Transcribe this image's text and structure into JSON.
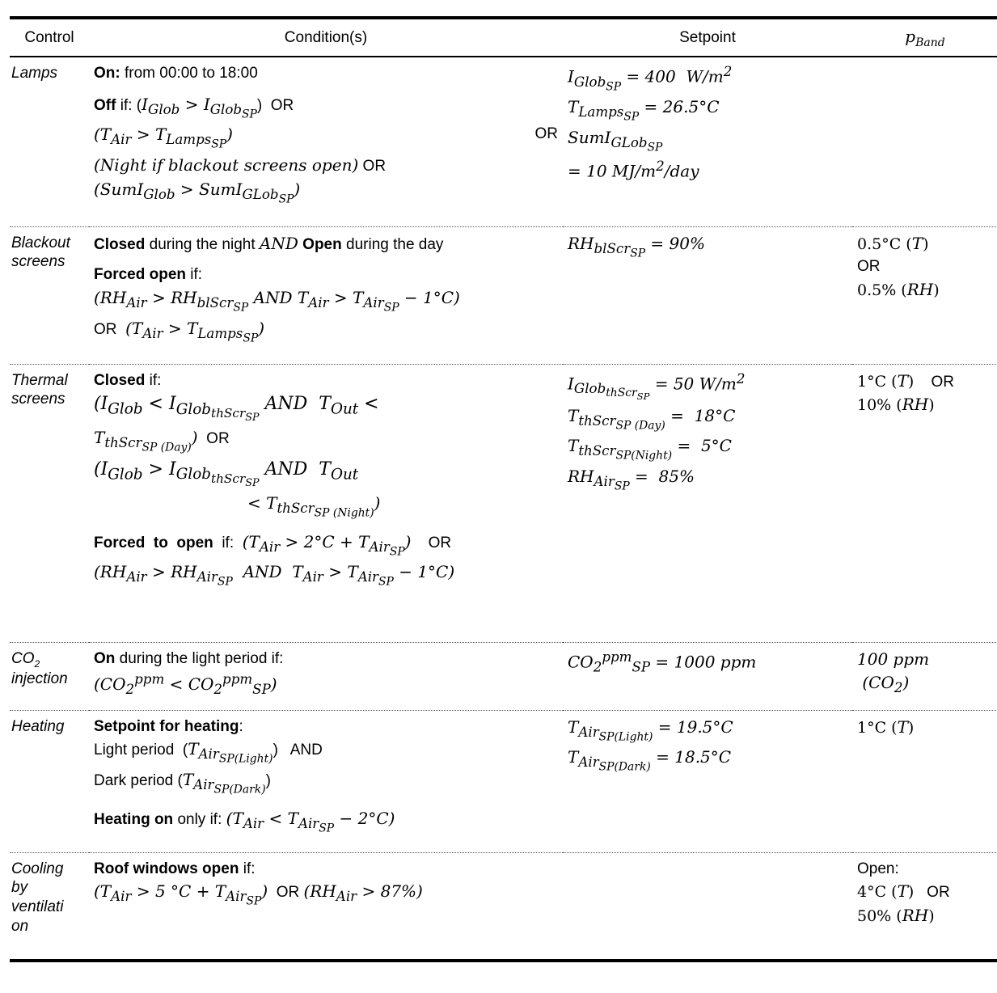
{
  "headers": {
    "control": "Control",
    "conditions": "Condition(s)",
    "setpoint": "Setpoint",
    "band": "p_Band"
  },
  "rows": [
    {
      "control": "Lamps",
      "conditions": [
        "On: from 00:00 to 18:00",
        "Off if: (I_Glob > I_Glob_SP) OR",
        "(T_Air > T_Lamps_SP) OR",
        "(Night if blackout screens open) OR",
        "(SumI_Glob > SumI_GLob_SP)"
      ],
      "setpoint": [
        "I_Glob_SP = 400 W/m²",
        "T_Lamps_SP = 26.5°C",
        "SumI_GLob_SP",
        "= 10 MJ/m²/day"
      ],
      "band": []
    },
    {
      "control": "Blackout screens",
      "conditions": [
        "Closed during the night AND Open during the day",
        "Forced open if:",
        "(RH_Air > RH_blScr_SP AND T_Air > T_Air_SP − 1°C)",
        "OR (T_Air > T_Lamps_SP)"
      ],
      "setpoint": [
        "RH_blScr_SP = 90%"
      ],
      "band": [
        "0.5°C (T)",
        "OR",
        "0.5% (RH)"
      ]
    },
    {
      "control": "Thermal screens",
      "conditions": [
        "Closed if:",
        "(I_Glob < I_Glob_thScr_SP AND T_Out <",
        "T_thScr_SP (Day)) OR",
        "(I_Glob > I_Glob_thScr_SP AND T_Out",
        "< T_thScr_SP (Night))",
        "Forced to open if: (T_Air > 2°C + T_Air_SP) OR",
        "(RH_Air > RH_Air_SP AND T_Air > T_Air_SP − 1°C)"
      ],
      "setpoint": [
        "I_Glob_thScr_SP = 50 W/m²",
        "T_thScr_SP (Day) = 18°C",
        "T_thScr_SP(Night) = 5°C",
        "RH_Air_SP = 85%"
      ],
      "band": [
        "1°C (T) OR",
        "10% (RH)"
      ]
    },
    {
      "control": "CO2 injection",
      "conditions": [
        "On during the light period if:",
        "(CO2^ppm < CO2^ppm_SP)"
      ],
      "setpoint": [
        "CO2^ppm_SP = 1000 ppm"
      ],
      "band": [
        "100 ppm",
        "(CO2)"
      ]
    },
    {
      "control": "Heating",
      "conditions": [
        "Setpoint for heating:",
        "Light period (T_Air_SP(Light)) AND",
        "Dark period (T_Air_SP(Dark))",
        "Heating on only if: (T_Air < T_Air_SP − 2°C)"
      ],
      "setpoint": [
        "T_Air_SP(Light) = 19.5°C",
        "T_Air_SP(Dark) = 18.5°C"
      ],
      "band": [
        "1°C (T)"
      ]
    },
    {
      "control": "Cooling by ventilation",
      "conditions": [
        "Roof windows open if:",
        "(T_Air > 5 °C + T_Air_SP) OR (RH_Air > 87%)"
      ],
      "setpoint": [],
      "band": [
        "Open:",
        "4°C (T) OR",
        "50% (RH)"
      ]
    }
  ]
}
